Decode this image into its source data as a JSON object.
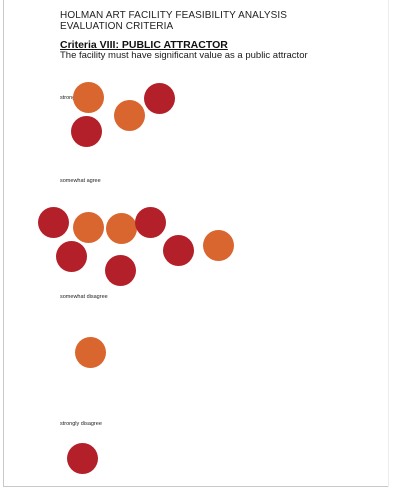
{
  "document": {
    "title_lines": [
      "HOLMAN ART FACILITY FEASIBILITY ANALYSIS",
      "EVALUATION CRITERIA"
    ],
    "criteria_heading": "Criteria VIII: PUBLIC ATTRACTOR",
    "criteria_description": "The facility must have significant value as a public attractor"
  },
  "sections": [
    {
      "label": "strongly agree",
      "dot_count": 4,
      "red_dots": 2,
      "orange_dots": 2
    },
    {
      "label": "somewhat agree",
      "dot_count": 8,
      "red_dots": 5,
      "orange_dots": 3
    },
    {
      "label": "somewhat disagree",
      "dot_count": 1,
      "red_dots": 0,
      "orange_dots": 1
    },
    {
      "label": "strongly disagree",
      "dot_count": 1,
      "red_dots": 1,
      "orange_dots": 0
    }
  ],
  "colors": {
    "dot_red": "#b3202a",
    "dot_orange": "#d9662f",
    "text": "#1f1f1f"
  }
}
